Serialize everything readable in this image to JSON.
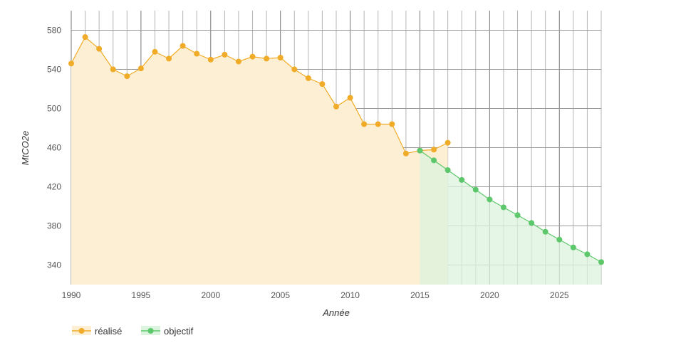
{
  "chart_data": {
    "type": "area",
    "xlabel": "Année",
    "ylabel": "MtCO2e",
    "xlim": [
      1990,
      2028
    ],
    "ylim": [
      320,
      600
    ],
    "x_ticks": [
      1990,
      1995,
      2000,
      2005,
      2010,
      2015,
      2020,
      2025
    ],
    "y_ticks": [
      340,
      380,
      420,
      460,
      500,
      540,
      580
    ],
    "grid": true,
    "legend_position": "bottom-left",
    "series": [
      {
        "name": "réalisé",
        "color": "#f0ac28",
        "fill": "#fcefd4",
        "x": [
          1990,
          1991,
          1992,
          1993,
          1994,
          1995,
          1996,
          1997,
          1998,
          1999,
          2000,
          2001,
          2002,
          2003,
          2004,
          2005,
          2006,
          2007,
          2008,
          2009,
          2010,
          2011,
          2012,
          2013,
          2014,
          2015,
          2016,
          2017
        ],
        "values": [
          546,
          573,
          561,
          540,
          533,
          541,
          558,
          551,
          564,
          556,
          550,
          555,
          548,
          553,
          551,
          552,
          540,
          531,
          525,
          502,
          511,
          484,
          484,
          484,
          454,
          457,
          458,
          465
        ]
      },
      {
        "name": "objectif",
        "color": "#5dc86b",
        "fill": "#dcf3de",
        "x": [
          2015,
          2016,
          2017,
          2018,
          2019,
          2020,
          2021,
          2022,
          2023,
          2024,
          2025,
          2026,
          2027,
          2028
        ],
        "values": [
          457,
          447,
          437,
          427,
          417,
          407,
          399,
          391,
          383,
          374,
          366,
          358,
          351,
          343
        ]
      }
    ]
  }
}
